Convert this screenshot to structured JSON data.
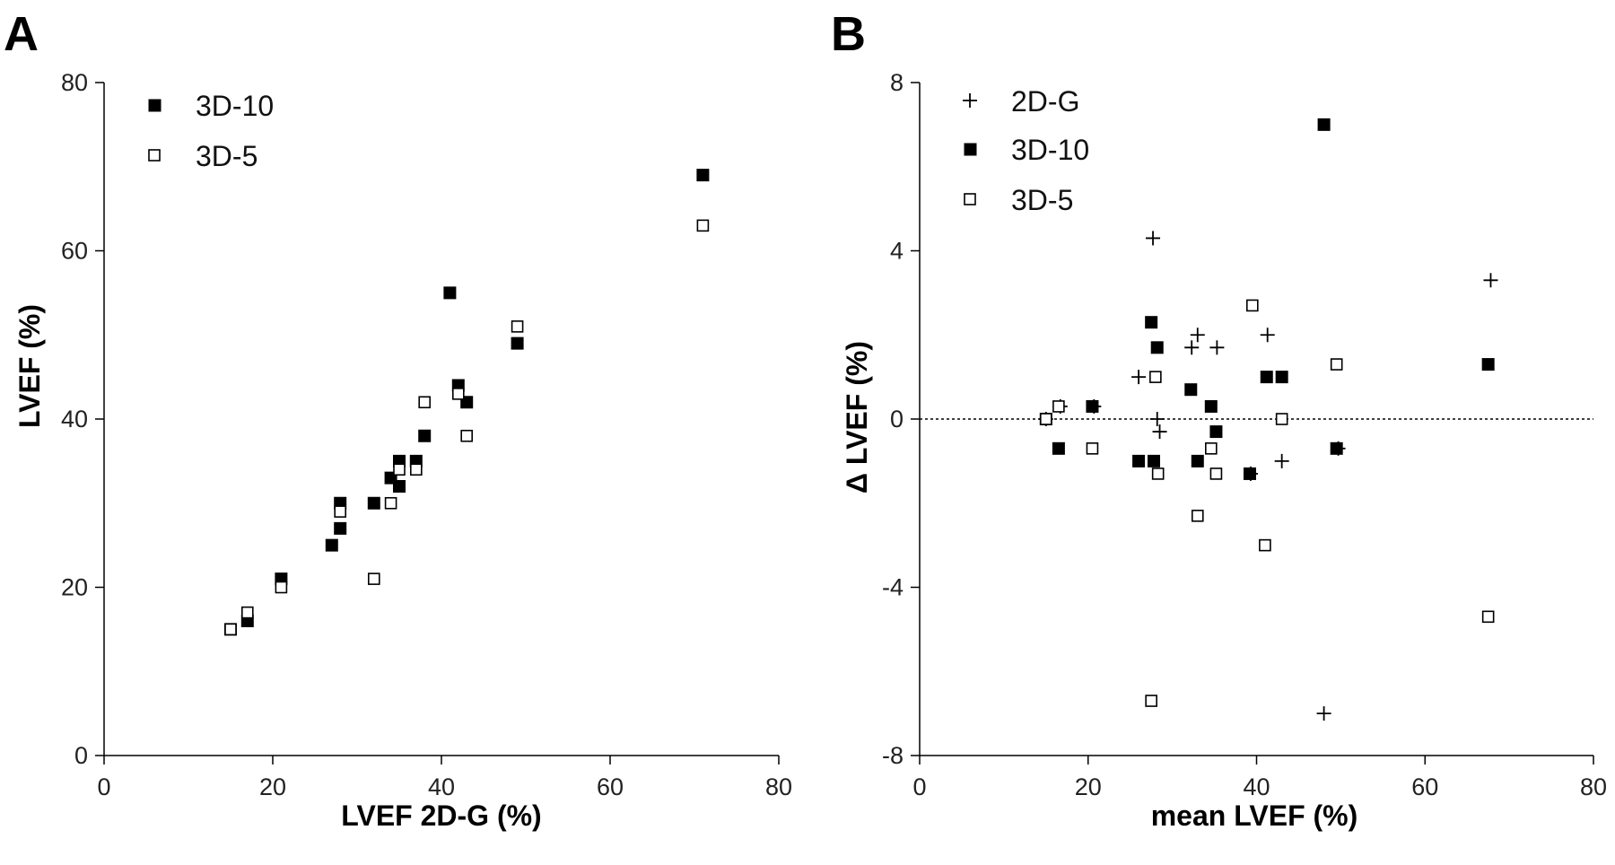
{
  "chart_data": [
    {
      "type": "scatter",
      "panel_label": "A",
      "xlabel": "LVEF 2D-G (%)",
      "ylabel": "LVEF (%)",
      "xlim": [
        0,
        80
      ],
      "ylim": [
        0,
        80
      ],
      "xticks": [
        "0",
        "20",
        "40",
        "60",
        "80"
      ],
      "yticks": [
        "0",
        "20",
        "40",
        "60",
        "80"
      ],
      "legend_position": "top-left",
      "series": [
        {
          "name": "3D-10",
          "marker": "filled-square",
          "points": [
            [
              15,
              15
            ],
            [
              17,
              16
            ],
            [
              21,
              21
            ],
            [
              27,
              25
            ],
            [
              28,
              27
            ],
            [
              28,
              30
            ],
            [
              32,
              30
            ],
            [
              34,
              33
            ],
            [
              35,
              32
            ],
            [
              35,
              35
            ],
            [
              37,
              35
            ],
            [
              38,
              38
            ],
            [
              41,
              55
            ],
            [
              42,
              44
            ],
            [
              43,
              42
            ],
            [
              49,
              49
            ],
            [
              71,
              69
            ]
          ]
        },
        {
          "name": "3D-5",
          "marker": "open-square",
          "points": [
            [
              15,
              15
            ],
            [
              17,
              17
            ],
            [
              21,
              20
            ],
            [
              28,
              29
            ],
            [
              32,
              21
            ],
            [
              34,
              30
            ],
            [
              35,
              34
            ],
            [
              37,
              34
            ],
            [
              38,
              42
            ],
            [
              42,
              43
            ],
            [
              43,
              38
            ],
            [
              49,
              51
            ],
            [
              71,
              63
            ]
          ]
        }
      ]
    },
    {
      "type": "scatter",
      "panel_label": "B",
      "xlabel": "mean LVEF (%)",
      "ylabel": "Δ LVEF (%)",
      "xlim": [
        0,
        80
      ],
      "ylim": [
        -8,
        8
      ],
      "xticks": [
        "0",
        "20",
        "40",
        "60",
        "80"
      ],
      "yticks": [
        "-8",
        "-4",
        "0",
        "4",
        "8"
      ],
      "reference_line_y": 0,
      "legend_position": "top-left",
      "series": [
        {
          "name": "2D-G",
          "marker": "plus",
          "points": [
            [
              15,
              0
            ],
            [
              16.7,
              0.3
            ],
            [
              20.7,
              0.3
            ],
            [
              26,
              1
            ],
            [
              27.7,
              4.3
            ],
            [
              28.2,
              0
            ],
            [
              28.5,
              -0.3
            ],
            [
              32.3,
              1.7
            ],
            [
              33,
              2
            ],
            [
              35.3,
              1.7
            ],
            [
              39.3,
              -1.3
            ],
            [
              41.3,
              2
            ],
            [
              43,
              -1
            ],
            [
              48,
              -7
            ],
            [
              49.7,
              -0.7
            ],
            [
              67.8,
              3.3
            ]
          ]
        },
        {
          "name": "3D-10",
          "marker": "filled-square",
          "points": [
            [
              15,
              0
            ],
            [
              16.5,
              -0.7
            ],
            [
              20.5,
              0.3
            ],
            [
              26,
              -1
            ],
            [
              27.5,
              2.3
            ],
            [
              27.8,
              -1
            ],
            [
              28.2,
              1.7
            ],
            [
              32.2,
              0.7
            ],
            [
              33,
              -1
            ],
            [
              34.6,
              0.3
            ],
            [
              35.2,
              -0.3
            ],
            [
              39.2,
              -1.3
            ],
            [
              41.2,
              1
            ],
            [
              43,
              1
            ],
            [
              48,
              7
            ],
            [
              49.5,
              -0.7
            ],
            [
              67.5,
              1.3
            ]
          ]
        },
        {
          "name": "3D-5",
          "marker": "open-square",
          "points": [
            [
              15,
              0
            ],
            [
              16.5,
              0.3
            ],
            [
              20.5,
              -0.7
            ],
            [
              27.5,
              -6.7
            ],
            [
              28,
              1
            ],
            [
              28.3,
              -1.3
            ],
            [
              33,
              -2.3
            ],
            [
              34.6,
              -0.7
            ],
            [
              35.2,
              -1.3
            ],
            [
              39.5,
              2.7
            ],
            [
              41,
              -3
            ],
            [
              43,
              0
            ],
            [
              49.5,
              1.3
            ],
            [
              67.5,
              -4.7
            ]
          ]
        }
      ]
    }
  ]
}
